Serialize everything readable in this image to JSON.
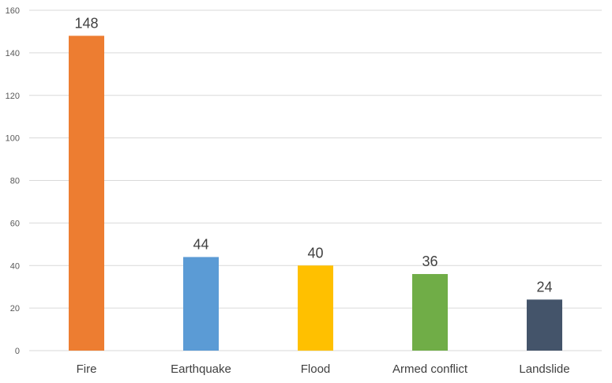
{
  "chart_data": {
    "type": "bar",
    "title": "",
    "xlabel": "",
    "ylabel": "",
    "categories": [
      "Fire",
      "Earthquake",
      "Flood",
      "Armed conflict",
      "Landslide"
    ],
    "values": [
      148,
      44,
      40,
      36,
      24
    ],
    "data_labels": [
      "148",
      "44",
      "40",
      "36",
      "24"
    ],
    "bar_colors": [
      "#ED7D31",
      "#5B9BD5",
      "#FFC000",
      "#70AD47",
      "#44546A"
    ],
    "ylim": [
      0,
      160
    ],
    "yticks": [
      0,
      20,
      40,
      60,
      80,
      100,
      120,
      140,
      160
    ],
    "ytick_labels": [
      "0",
      "20",
      "40",
      "60",
      "80",
      "100",
      "120",
      "140",
      "160"
    ],
    "grid": true,
    "legend": "none"
  }
}
